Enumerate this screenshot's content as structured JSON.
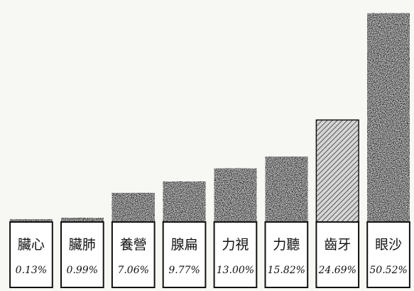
{
  "chart_data": {
    "type": "bar",
    "categories": [
      "臟心",
      "臟肺",
      "養營",
      "腺扁",
      "力視",
      "力聽",
      "齒牙",
      "眼沙"
    ],
    "value_labels": [
      "0.13%",
      "0.99%",
      "7.06%",
      "9.77%",
      "13.00%",
      "15.82%",
      "24.69%",
      "50.52%"
    ],
    "values": [
      0.13,
      0.99,
      7.06,
      9.77,
      13.0,
      15.82,
      24.69,
      50.52
    ],
    "ylim": [
      0,
      52
    ],
    "colors": {
      "solid": "#1c1c1c",
      "hatched": "#8a8a8a",
      "box_fill": "#ffffff",
      "box_border": "#111111"
    },
    "hatched_index": 6
  }
}
